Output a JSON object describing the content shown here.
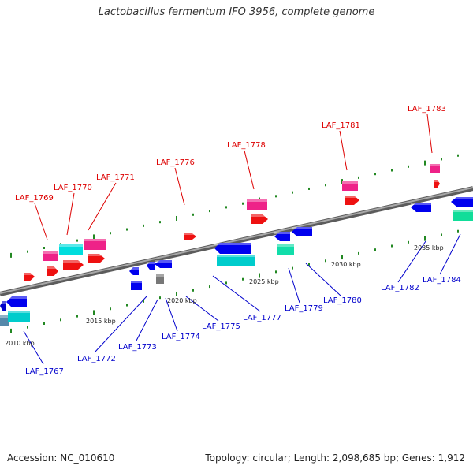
{
  "title": "Lactobacillus fermentum IFO 3956, complete genome",
  "footer": {
    "accession": "Accession: NC_010610",
    "summary": "Topology: circular; Length: 2,098,685 bp; Genes: 1,912"
  },
  "colors": {
    "backbone": "#808080",
    "scale_ticks": "#228822",
    "forward_label": "#dd0000",
    "reverse_label": "#0000cc"
  },
  "scale_labels": [
    "2010 kbp",
    "2015 kbp",
    "2020 kbp",
    "2025 kbp",
    "2030 kbp",
    "2035 kbp"
  ],
  "forward_genes": [
    "LAF_1769",
    "LAF_1770",
    "LAF_1771",
    "LAF_1776",
    "LAF_1778",
    "LAF_1781",
    "LAF_1783"
  ],
  "reverse_genes": [
    "LAF_1767",
    "LAF_1772",
    "LAF_1773",
    "LAF_1774",
    "LAF_1775",
    "LAF_1777",
    "LAF_1779",
    "LAF_1780",
    "LAF_1782",
    "LAF_1784"
  ]
}
